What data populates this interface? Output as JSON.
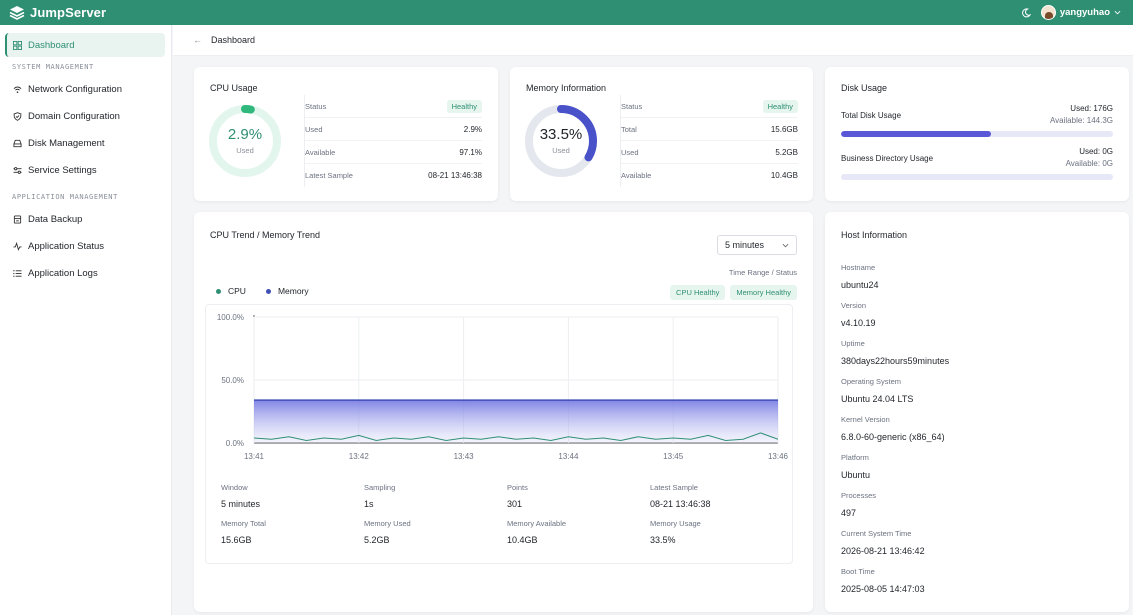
{
  "app": {
    "title": "JumpServer"
  },
  "topbar": {
    "username": "yangyuhao"
  },
  "sidebar": {
    "dashboard": "Dashboard",
    "system_section": "SYSTEM MANAGEMENT",
    "system_items": [
      "Network Configuration",
      "Domain Configuration",
      "Disk Management",
      "Service Settings"
    ],
    "app_section": "APPLICATION MANAGEMENT",
    "app_items": [
      "Data Backup",
      "Application Status",
      "Application Logs"
    ]
  },
  "breadcrumb": {
    "current": "Dashboard"
  },
  "cpu": {
    "title": "CPU Usage",
    "percent": 2.9,
    "value_label": "2.9%",
    "sub_label": "Used",
    "rows": [
      {
        "k": "Status",
        "v": "Healthy"
      },
      {
        "k": "Used",
        "v": "2.9%"
      },
      {
        "k": "Available",
        "v": "97.1%"
      },
      {
        "k": "Latest Sample",
        "v": "08-21 13:46:38"
      }
    ]
  },
  "memory": {
    "title": "Memory Information",
    "percent": 33.5,
    "value_label": "33.5%",
    "sub_label": "Used",
    "rows": [
      {
        "k": "Status",
        "v": "Healthy"
      },
      {
        "k": "Total",
        "v": "15.6GB"
      },
      {
        "k": "Used",
        "v": "5.2GB"
      },
      {
        "k": "Available",
        "v": "10.4GB"
      }
    ]
  },
  "disk": {
    "title": "Disk Usage",
    "items": [
      {
        "label": "Total Disk Usage",
        "used": "Used: 176G",
        "available": "Available: 144.3G",
        "fraction": 0.55
      },
      {
        "label": "Business Directory Usage",
        "used": "Used: 0G",
        "available": "Available: 0G",
        "fraction": 0
      }
    ]
  },
  "trend": {
    "title": "CPU Trend / Memory Trend",
    "select_value": "5 minutes",
    "time_status": "Time Range / Status",
    "legend": [
      {
        "name": "CPU",
        "color": "#2f8f73"
      },
      {
        "name": "Memory",
        "color": "#3f4fb6"
      }
    ],
    "badges": [
      "CPU Healthy",
      "Memory Healthy"
    ],
    "metrics": [
      {
        "k": "Window",
        "v": "5 minutes"
      },
      {
        "k": "Sampling",
        "v": "1s"
      },
      {
        "k": "Points",
        "v": "301"
      },
      {
        "k": "Latest Sample",
        "v": "08-21 13:46:38"
      },
      {
        "k": "Memory Total",
        "v": "15.6GB"
      },
      {
        "k": "Memory Used",
        "v": "5.2GB"
      },
      {
        "k": "Memory Available",
        "v": "10.4GB"
      },
      {
        "k": "Memory Usage",
        "v": "33.5%"
      }
    ]
  },
  "chart_data": {
    "type": "area",
    "x_ticks": [
      "13:41",
      "13:42",
      "13:43",
      "13:44",
      "13:45",
      "13:46"
    ],
    "y_ticks": [
      "100.0%",
      "50.0%",
      "0.0%"
    ],
    "ylim": [
      0,
      100
    ],
    "grid": true,
    "series": [
      {
        "name": "Memory",
        "color": "#3f4fb6",
        "values": [
          34,
          34,
          34,
          34,
          34,
          34,
          34,
          34,
          34,
          34,
          34,
          34,
          34,
          34,
          34,
          34,
          34,
          34,
          34,
          34,
          34,
          34,
          34,
          34,
          34,
          34,
          34,
          34,
          34,
          34,
          34
        ]
      },
      {
        "name": "CPU",
        "color": "#2f8f73",
        "values": [
          4,
          3,
          5,
          2,
          4,
          3,
          6,
          2,
          4,
          3,
          5,
          2,
          4,
          3,
          5,
          3,
          4,
          2,
          5,
          3,
          4,
          2,
          5,
          3,
          4,
          3,
          6,
          2,
          3,
          8,
          3
        ]
      }
    ]
  },
  "host": {
    "title": "Host Information",
    "items": [
      {
        "k": "Hostname",
        "v": "ubuntu24"
      },
      {
        "k": "Version",
        "v": "v4.10.19"
      },
      {
        "k": "Uptime",
        "v": "380days22hours59minutes"
      },
      {
        "k": "Operating System",
        "v": "Ubuntu 24.04 LTS"
      },
      {
        "k": "Kernel Version",
        "v": "6.8.0-60-generic (x86_64)"
      },
      {
        "k": "Platform",
        "v": "Ubuntu"
      },
      {
        "k": "Processes",
        "v": "497"
      },
      {
        "k": "Current System Time",
        "v": "2026-08-21 13:46:42"
      },
      {
        "k": "Boot Time",
        "v": "2025-08-05 14:47:03"
      }
    ]
  }
}
